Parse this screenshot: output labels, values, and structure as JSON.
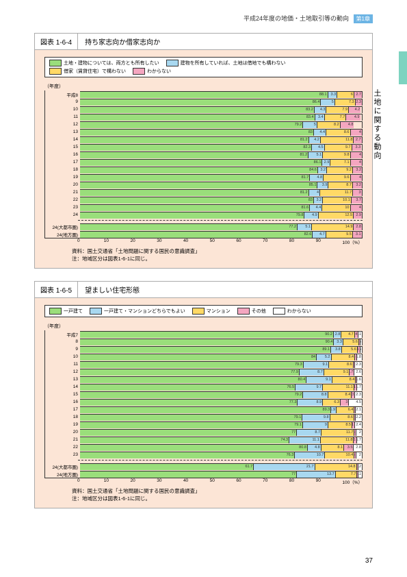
{
  "header": {
    "text": "平成24年度の地価・土地取引等の動向",
    "chapter": "第1章"
  },
  "sidebar": "土地に関する動向",
  "colors": {
    "green": "#9ade7b",
    "blue": "#a8d8f0",
    "yellow": "#ffd966",
    "pink": "#f4a6c0",
    "white": "#ffffff"
  },
  "chart1": {
    "num": "図表 1-6-4",
    "title": "持ち家志向か借家志向か",
    "legend": [
      {
        "color": "green",
        "label": "土地・建物については、両方とも所有したい"
      },
      {
        "color": "blue",
        "label": "建物を所有していれば、土地は借地でも構わない"
      },
      {
        "color": "yellow",
        "label": "借家（賃貸住宅）で構わない"
      },
      {
        "color": "pink",
        "label": "わからない"
      }
    ],
    "ylabel": "（年度）",
    "rows": [
      {
        "label": "平成8",
        "v": [
          88.1,
          3.3,
          6.0,
          2.7
        ]
      },
      {
        "label": "9",
        "v": [
          86.4,
          5.0,
          7.3,
          2.3
        ]
      },
      {
        "label": "10",
        "v": [
          83.2,
          4.3,
          7.9,
          4.2
        ]
      },
      {
        "label": "11",
        "v": [
          83.4,
          3.4,
          7.7,
          4.9
        ]
      },
      {
        "label": "12",
        "v": [
          79.2,
          5.0,
          8.2,
          4.8
        ]
      },
      {
        "label": "13",
        "v": [
          83.0,
          4.4,
          8.6,
          4.0
        ]
      },
      {
        "label": "14",
        "v": [
          81.2,
          4.2,
          11.8,
          2.7
        ]
      },
      {
        "label": "15",
        "v": [
          82.3,
          4.5,
          9.7,
          3.3
        ]
      },
      {
        "label": "16",
        "v": [
          81.2,
          5.1,
          9.8,
          4.0
        ]
      },
      {
        "label": "17",
        "v": [
          86.1,
          2.9,
          7.1,
          4.0
        ]
      },
      {
        "label": "18",
        "v": [
          84.6,
          3.2,
          9.2,
          3.2
        ]
      },
      {
        "label": "19",
        "v": [
          81.7,
          4.8,
          9.6,
          4.0
        ]
      },
      {
        "label": "20",
        "v": [
          85.1,
          3.9,
          8.7,
          3.2
        ]
      },
      {
        "label": "21",
        "v": [
          81.2,
          4.0,
          11.7,
          3.0
        ]
      },
      {
        "label": "22",
        "v": [
          83.0,
          3.2,
          10.1,
          3.7
        ]
      },
      {
        "label": "23",
        "v": [
          81.6,
          4.4,
          10.0,
          4.0
        ]
      },
      {
        "label": "24",
        "v": [
          79.8,
          4.9,
          12.5,
          2.9
        ]
      }
    ],
    "rows2": [
      {
        "label": "24(大都市圏)",
        "v": [
          77.2,
          5.1,
          14.9,
          2.8
        ]
      },
      {
        "label": "24(地方圏)",
        "v": [
          82.6,
          4.7,
          9.5,
          3.1
        ]
      }
    ],
    "xticks": [
      "0",
      "10",
      "20",
      "30",
      "40",
      "50",
      "60",
      "70",
      "80",
      "90",
      "100（%）"
    ],
    "source": [
      "資料：国土交通省「土地問題に関する国民の意識調査」",
      "注：地域区分は図表1-6-1に同じ。"
    ]
  },
  "chart2": {
    "num": "図表 1-6-5",
    "title": "望ましい住宅形態",
    "legend": [
      {
        "color": "green",
        "label": "一戸建て"
      },
      {
        "color": "blue",
        "label": "一戸建て・マンションどちらでもよい"
      },
      {
        "color": "yellow",
        "label": "マンション"
      },
      {
        "color": "pink",
        "label": "その他"
      },
      {
        "color": "white",
        "label": "わからない"
      }
    ],
    "ylabel": "（年度）",
    "rows": [
      {
        "label": "平成7",
        "v": [
          90.2,
          2.8,
          4.7,
          1.4,
          1.1
        ]
      },
      {
        "label": "8",
        "v": [
          90.4,
          3.3,
          5.6,
          0.5,
          0.5
        ]
      },
      {
        "label": "9",
        "v": [
          89.1,
          3.8,
          5.6,
          1.0,
          0.5
        ]
      },
      {
        "label": "10",
        "v": [
          84.0,
          5.2,
          8.4,
          0.6,
          1.8
        ]
      },
      {
        "label": "11",
        "v": [
          79.3,
          9.1,
          8.6,
          0.7,
          2.3
        ]
      },
      {
        "label": "12",
        "v": [
          77.9,
          8.7,
          9.1,
          1.7,
          2.6
        ]
      },
      {
        "label": "13",
        "v": [
          80.4,
          9.1,
          8.4,
          0.5,
          1.6
        ]
      },
      {
        "label": "14",
        "v": [
          76.5,
          9.7,
          11.1,
          1.0,
          1.7
        ]
      },
      {
        "label": "15",
        "v": [
          79.2,
          8.8,
          8.4,
          1.3,
          2.3
        ]
      },
      {
        "label": "16",
        "v": [
          77.3,
          8.9,
          6.3,
          3.0,
          4.5
        ]
      },
      {
        "label": "17",
        "v": [
          89.3,
          1.9,
          6.4,
          0.3,
          2.1
        ]
      },
      {
        "label": "18",
        "v": [
          79.1,
          9.8,
          8.6,
          0.3,
          2.2
        ]
      },
      {
        "label": "19",
        "v": [
          79.1,
          9.0,
          8.5,
          1.0,
          2.4
        ]
      },
      {
        "label": "20",
        "v": [
          77.0,
          8.7,
          11.7,
          0.6,
          2.0
        ]
      },
      {
        "label": "21",
        "v": [
          74.3,
          11.1,
          11.8,
          1.1,
          1.7
        ]
      },
      {
        "label": "22",
        "v": [
          80.8,
          4.8,
          8.1,
          3.5,
          2.8
        ]
      },
      {
        "label": "23",
        "v": [
          76.3,
          10.7,
          10.4,
          0.6,
          2.0
        ]
      }
    ],
    "rows2": [
      {
        "label": "24(大都市圏)",
        "v": [
          61.7,
          21.7,
          14.8,
          0.6,
          1.2
        ]
      },
      {
        "label": "24(地方圏)",
        "v": [
          77.0,
          13.7,
          7.7,
          0.5,
          1.1
        ]
      }
    ],
    "xticks": [
      "0",
      "10",
      "20",
      "30",
      "40",
      "50",
      "60",
      "70",
      "80",
      "90",
      "100（%）"
    ],
    "source": [
      "資料：国土交通省「土地問題に関する国民の意識調査」",
      "注：地域区分は図表1-6-1に同じ。"
    ]
  },
  "pagenum": "37"
}
